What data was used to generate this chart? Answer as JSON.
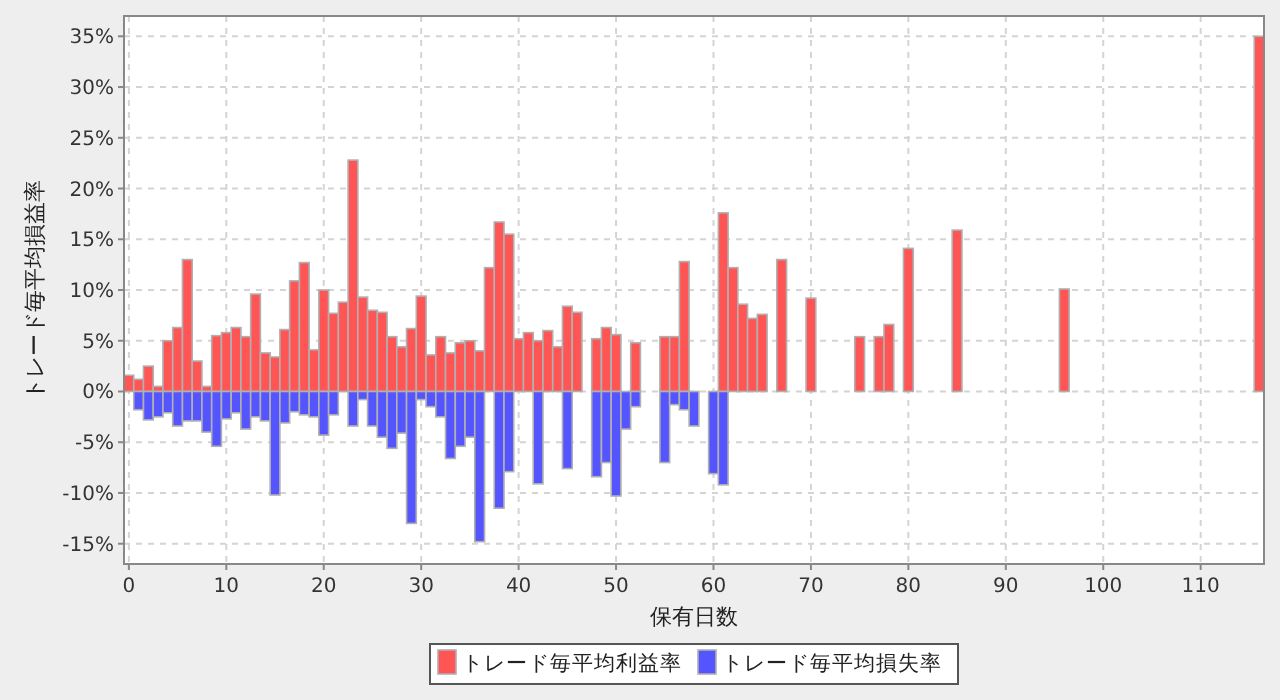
{
  "chart_data": {
    "type": "bar",
    "xlabel": "保有日数",
    "ylabel": "トレード毎平均損益率",
    "xlim": [
      -0.5,
      116.5
    ],
    "xticks": [
      0,
      10,
      20,
      30,
      40,
      50,
      60,
      70,
      80,
      90,
      100,
      110
    ],
    "ylim": [
      -17,
      37
    ],
    "yticks": [
      {
        "value": -15,
        "label": "-15%"
      },
      {
        "value": -10,
        "label": "-10%"
      },
      {
        "value": -5,
        "label": "-5%"
      },
      {
        "value": 0,
        "label": "0%"
      },
      {
        "value": 5,
        "label": "5%"
      },
      {
        "value": 10,
        "label": "10%"
      },
      {
        "value": 15,
        "label": "15%"
      },
      {
        "value": 20,
        "label": "20%"
      },
      {
        "value": 25,
        "label": "25%"
      },
      {
        "value": 30,
        "label": "30%"
      },
      {
        "value": 35,
        "label": "35%"
      }
    ],
    "grid": true,
    "legend": "bottom",
    "series": [
      {
        "name": "トレード毎平均利益率",
        "color": "#ff5555",
        "x": [
          0,
          1,
          2,
          3,
          4,
          5,
          6,
          7,
          8,
          9,
          10,
          11,
          12,
          13,
          14,
          15,
          16,
          17,
          18,
          19,
          20,
          21,
          22,
          23,
          24,
          25,
          26,
          27,
          28,
          29,
          30,
          31,
          32,
          33,
          34,
          35,
          36,
          37,
          38,
          39,
          40,
          41,
          42,
          43,
          44,
          45,
          46,
          48,
          49,
          50,
          52,
          55,
          56,
          57,
          61,
          62,
          63,
          64,
          65,
          67,
          70,
          75,
          77,
          78,
          80,
          85,
          96,
          116
        ],
        "values": [
          1.6,
          1.2,
          2.5,
          0.5,
          5.0,
          6.3,
          13.0,
          3.0,
          0.5,
          5.5,
          5.8,
          6.3,
          5.4,
          9.6,
          3.8,
          3.4,
          6.1,
          10.9,
          12.7,
          4.1,
          10.0,
          7.7,
          8.8,
          22.8,
          9.3,
          8.0,
          7.8,
          5.4,
          4.4,
          6.2,
          9.4,
          3.6,
          5.4,
          3.8,
          4.8,
          5.0,
          4.0,
          12.2,
          16.7,
          15.5,
          5.2,
          5.8,
          5.0,
          6.0,
          4.4,
          8.4,
          7.8,
          5.2,
          6.3,
          5.6,
          4.8,
          5.4,
          5.4,
          12.8,
          17.6,
          12.2,
          8.6,
          7.2,
          7.6,
          13.0,
          9.2,
          5.4,
          5.4,
          6.6,
          14.1,
          15.9,
          10.1,
          35.0
        ]
      },
      {
        "name": "トレード毎平均損失率",
        "color": "#5555ff",
        "x": [
          1,
          2,
          3,
          4,
          5,
          6,
          7,
          8,
          9,
          10,
          11,
          12,
          13,
          14,
          15,
          16,
          17,
          18,
          19,
          20,
          21,
          23,
          24,
          25,
          26,
          27,
          28,
          29,
          30,
          31,
          32,
          33,
          34,
          35,
          36,
          38,
          39,
          42,
          45,
          48,
          49,
          50,
          51,
          52,
          55,
          56,
          57,
          58,
          60,
          61
        ],
        "values": [
          -1.8,
          -2.8,
          -2.5,
          -2.1,
          -3.4,
          -2.9,
          -2.9,
          -4.0,
          -5.4,
          -2.7,
          -2.1,
          -3.7,
          -2.5,
          -2.9,
          -10.2,
          -3.1,
          -2.0,
          -2.3,
          -2.5,
          -4.3,
          -2.3,
          -3.4,
          -0.8,
          -3.4,
          -4.5,
          -5.6,
          -4.1,
          -13.0,
          -0.8,
          -1.5,
          -2.5,
          -6.6,
          -5.4,
          -4.5,
          -14.8,
          -11.5,
          -7.9,
          -9.1,
          -7.6,
          -8.4,
          -7.0,
          -10.3,
          -3.7,
          -1.5,
          -7.0,
          -1.3,
          -1.8,
          -3.4,
          -8.1,
          -9.2
        ]
      }
    ]
  }
}
